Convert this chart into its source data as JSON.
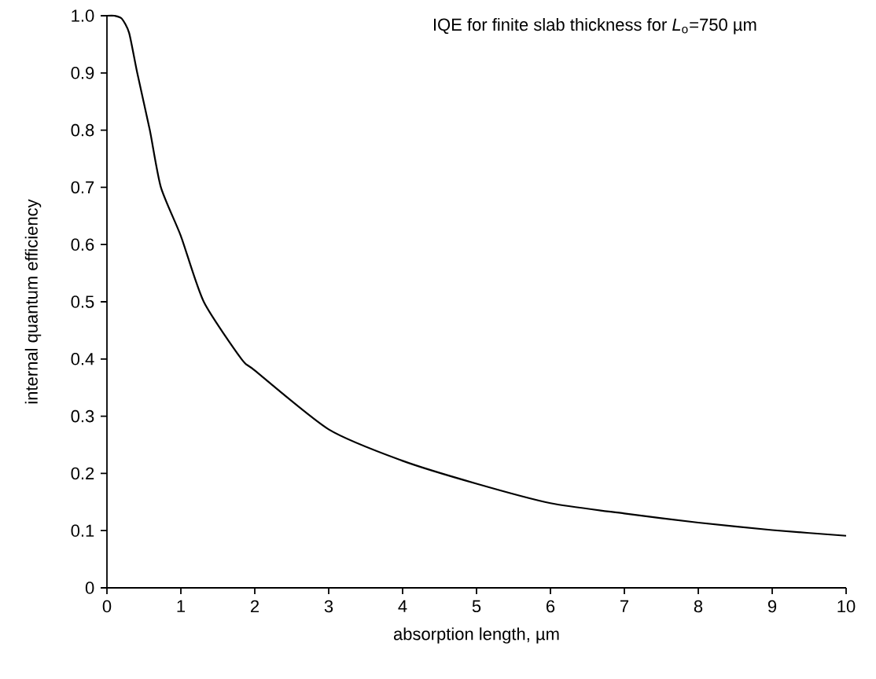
{
  "chart_data": {
    "type": "line",
    "title": "IQE for finite slab thickness for *L*$_{o}$=750 µm",
    "xlabel": "absorption length, µm",
    "ylabel": "internal quantum efficiency",
    "x": [
      0,
      0.1,
      0.2,
      0.3,
      0.41,
      0.58,
      0.73,
      1,
      1.31,
      1.82,
      2,
      3,
      4,
      5,
      6,
      7,
      8,
      9,
      10
    ],
    "series": [
      {
        "color": "#000000",
        "values": [
          1,
          1,
          0.995,
          0.97,
          0.9,
          0.8,
          0.7,
          0.615,
          0.5,
          0.4,
          0.38,
          0.277,
          0.222,
          0.182,
          0.148,
          0.13,
          0.114,
          0.101,
          0.091
        ]
      }
    ],
    "xlim": [
      0,
      10
    ],
    "ylim": [
      0,
      1
    ],
    "xticks": [
      0,
      1,
      2,
      3,
      4,
      5,
      6,
      7,
      8,
      9,
      10
    ],
    "yticks": [
      0,
      0.1,
      0.2,
      0.3,
      0.4,
      0.5,
      0.6,
      0.7,
      0.8,
      0.9,
      {
        "value": 1,
        "label": "1.0"
      }
    ]
  }
}
